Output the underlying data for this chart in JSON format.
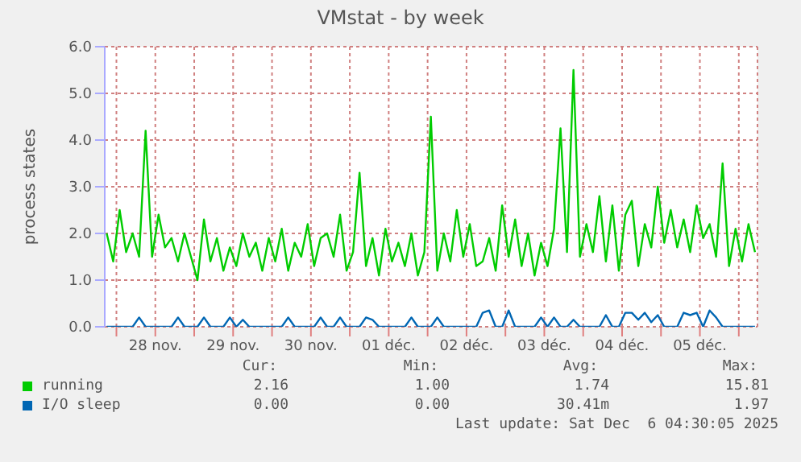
{
  "chart_data": {
    "type": "line",
    "title": "VMstat - by week",
    "ylabel": "process states",
    "xlim": [
      "2025-11-27T20:24",
      "2025-12-06T05:46"
    ],
    "xticks": [
      {
        "value": "2025-11-28T00:00",
        "label": null
      },
      {
        "value": "2025-11-28T12:00",
        "label": "28 nov."
      },
      {
        "value": "2025-11-29T00:00",
        "label": null
      },
      {
        "value": "2025-11-29T12:00",
        "label": "29 nov."
      },
      {
        "value": "2025-11-30T00:00",
        "label": null
      },
      {
        "value": "2025-11-30T12:00",
        "label": "30 nov."
      },
      {
        "value": "2025-12-01T00:00",
        "label": null
      },
      {
        "value": "2025-12-01T12:00",
        "label": "01 déc."
      },
      {
        "value": "2025-12-02T00:00",
        "label": null
      },
      {
        "value": "2025-12-02T12:00",
        "label": "02 déc."
      },
      {
        "value": "2025-12-03T00:00",
        "label": null
      },
      {
        "value": "2025-12-03T12:00",
        "label": "03 déc."
      },
      {
        "value": "2025-12-04T00:00",
        "label": null
      },
      {
        "value": "2025-12-04T12:00",
        "label": "04 déc."
      },
      {
        "value": "2025-12-05T00:00",
        "label": null
      },
      {
        "value": "2025-12-05T12:00",
        "label": "05 déc."
      },
      {
        "value": "2025-12-06T00:00",
        "label": null
      }
    ],
    "ylim": [
      0,
      6
    ],
    "yticks": [
      {
        "value": 0,
        "label": "0.0"
      },
      {
        "value": 1,
        "label": "1.0"
      },
      {
        "value": 2,
        "label": "2.0"
      },
      {
        "value": 3,
        "label": "3.0"
      },
      {
        "value": 4,
        "label": "4.0"
      },
      {
        "value": 5,
        "label": "5.0"
      },
      {
        "value": 6,
        "label": "6.0"
      }
    ],
    "grid": true,
    "legend": "bottom",
    "marker": "none",
    "line_style": "solid",
    "series": [
      {
        "name": "running",
        "color": "#00cc00",
        "values": [
          2.0,
          1.4,
          2.5,
          1.6,
          2.0,
          1.5,
          4.2,
          1.5,
          2.4,
          1.7,
          1.9,
          1.4,
          2.0,
          1.5,
          1.0,
          2.3,
          1.4,
          1.9,
          1.2,
          1.7,
          1.3,
          2.0,
          1.5,
          1.8,
          1.2,
          1.9,
          1.4,
          2.1,
          1.2,
          1.8,
          1.5,
          2.2,
          1.3,
          1.9,
          2.0,
          1.5,
          2.4,
          1.2,
          1.6,
          3.3,
          1.3,
          1.9,
          1.1,
          2.1,
          1.4,
          1.8,
          1.3,
          2.0,
          1.1,
          1.6,
          4.5,
          1.2,
          2.0,
          1.4,
          2.5,
          1.5,
          2.2,
          1.3,
          1.4,
          1.9,
          1.2,
          2.6,
          1.5,
          2.3,
          1.3,
          2.0,
          1.1,
          1.8,
          1.3,
          2.1,
          4.25,
          1.6,
          5.5,
          1.5,
          2.2,
          1.6,
          2.8,
          1.4,
          2.6,
          1.2,
          2.4,
          2.7,
          1.3,
          2.2,
          1.7,
          3.0,
          1.8,
          2.5,
          1.7,
          2.3,
          1.6,
          2.6,
          1.9,
          2.2,
          1.5,
          3.5,
          1.3,
          2.1,
          1.4,
          2.2,
          1.6
        ]
      },
      {
        "name": "I/O sleep",
        "color": "#0066b3",
        "values": [
          0,
          0,
          0,
          0,
          0,
          0.2,
          0,
          0,
          0,
          0,
          0,
          0.2,
          0,
          0,
          0,
          0.2,
          0,
          0,
          0,
          0.2,
          0,
          0.15,
          0,
          0,
          0,
          0,
          0,
          0,
          0.2,
          0,
          0,
          0,
          0,
          0.2,
          0,
          0,
          0.2,
          0,
          0,
          0,
          0.2,
          0.15,
          0,
          0,
          0,
          0,
          0,
          0.2,
          0,
          0,
          0,
          0.2,
          0,
          0,
          0,
          0,
          0,
          0,
          0.3,
          0.35,
          0,
          0,
          0.35,
          0,
          0,
          0,
          0,
          0.2,
          0,
          0.2,
          0,
          0,
          0.15,
          0,
          0,
          0,
          0,
          0.25,
          0,
          0,
          0.3,
          0.3,
          0.15,
          0.3,
          0.1,
          0.25,
          0,
          0,
          0,
          0.3,
          0.25,
          0.3,
          0,
          0.35,
          0.2,
          0,
          0,
          0,
          0,
          0,
          0
        ]
      }
    ],
    "x": [
      "2025-11-27T21:00",
      "2025-11-27T23:00",
      "2025-11-28T01:00",
      "2025-11-28T03:00",
      "2025-11-28T05:00",
      "2025-11-28T07:00",
      "2025-11-28T09:00",
      "2025-11-28T11:00",
      "2025-11-28T13:00",
      "2025-11-28T15:00",
      "2025-11-28T17:00",
      "2025-11-28T19:00",
      "2025-11-28T21:00",
      "2025-11-28T23:00",
      "2025-11-29T01:00",
      "2025-11-29T03:00",
      "2025-11-29T05:00",
      "2025-11-29T07:00",
      "2025-11-29T09:00",
      "2025-11-29T11:00",
      "2025-11-29T13:00",
      "2025-11-29T15:00",
      "2025-11-29T17:00",
      "2025-11-29T19:00",
      "2025-11-29T21:00",
      "2025-11-29T23:00",
      "2025-11-30T01:00",
      "2025-11-30T03:00",
      "2025-11-30T05:00",
      "2025-11-30T07:00",
      "2025-11-30T09:00",
      "2025-11-30T11:00",
      "2025-11-30T13:00",
      "2025-11-30T15:00",
      "2025-11-30T17:00",
      "2025-11-30T19:00",
      "2025-11-30T21:00",
      "2025-11-30T23:00",
      "2025-12-01T01:00",
      "2025-12-01T03:00",
      "2025-12-01T05:00",
      "2025-12-01T07:00",
      "2025-12-01T09:00",
      "2025-12-01T11:00",
      "2025-12-01T13:00",
      "2025-12-01T15:00",
      "2025-12-01T17:00",
      "2025-12-01T19:00",
      "2025-12-01T21:00",
      "2025-12-01T23:00",
      "2025-12-02T01:00",
      "2025-12-02T03:00",
      "2025-12-02T05:00",
      "2025-12-02T07:00",
      "2025-12-02T09:00",
      "2025-12-02T11:00",
      "2025-12-02T13:00",
      "2025-12-02T15:00",
      "2025-12-02T17:00",
      "2025-12-02T19:00",
      "2025-12-02T21:00",
      "2025-12-02T23:00",
      "2025-12-03T01:00",
      "2025-12-03T03:00",
      "2025-12-03T05:00",
      "2025-12-03T07:00",
      "2025-12-03T09:00",
      "2025-12-03T11:00",
      "2025-12-03T13:00",
      "2025-12-03T15:00",
      "2025-12-03T17:00",
      "2025-12-03T19:00",
      "2025-12-03T21:00",
      "2025-12-03T23:00",
      "2025-12-04T01:00",
      "2025-12-04T03:00",
      "2025-12-04T05:00",
      "2025-12-04T07:00",
      "2025-12-04T09:00",
      "2025-12-04T11:00",
      "2025-12-04T13:00",
      "2025-12-04T15:00",
      "2025-12-04T17:00",
      "2025-12-04T19:00",
      "2025-12-04T21:00",
      "2025-12-04T23:00",
      "2025-12-05T01:00",
      "2025-12-05T03:00",
      "2025-12-05T05:00",
      "2025-12-05T07:00",
      "2025-12-05T09:00",
      "2025-12-05T11:00",
      "2025-12-05T13:00",
      "2025-12-05T15:00",
      "2025-12-05T17:00",
      "2025-12-05T19:00",
      "2025-12-05T21:00",
      "2025-12-05T23:00",
      "2025-12-06T01:00",
      "2025-12-06T03:00",
      "2025-12-06T05:00"
    ],
    "annotations": [
      "Cur:",
      "Min:",
      "Avg:",
      "Max:",
      "2.16",
      "1.00",
      "1.74",
      "15.81",
      "0.00",
      "0.00",
      "30.41m",
      "1.97",
      "Last update: Sat Dec  6 04:30:05 2025"
    ]
  }
}
